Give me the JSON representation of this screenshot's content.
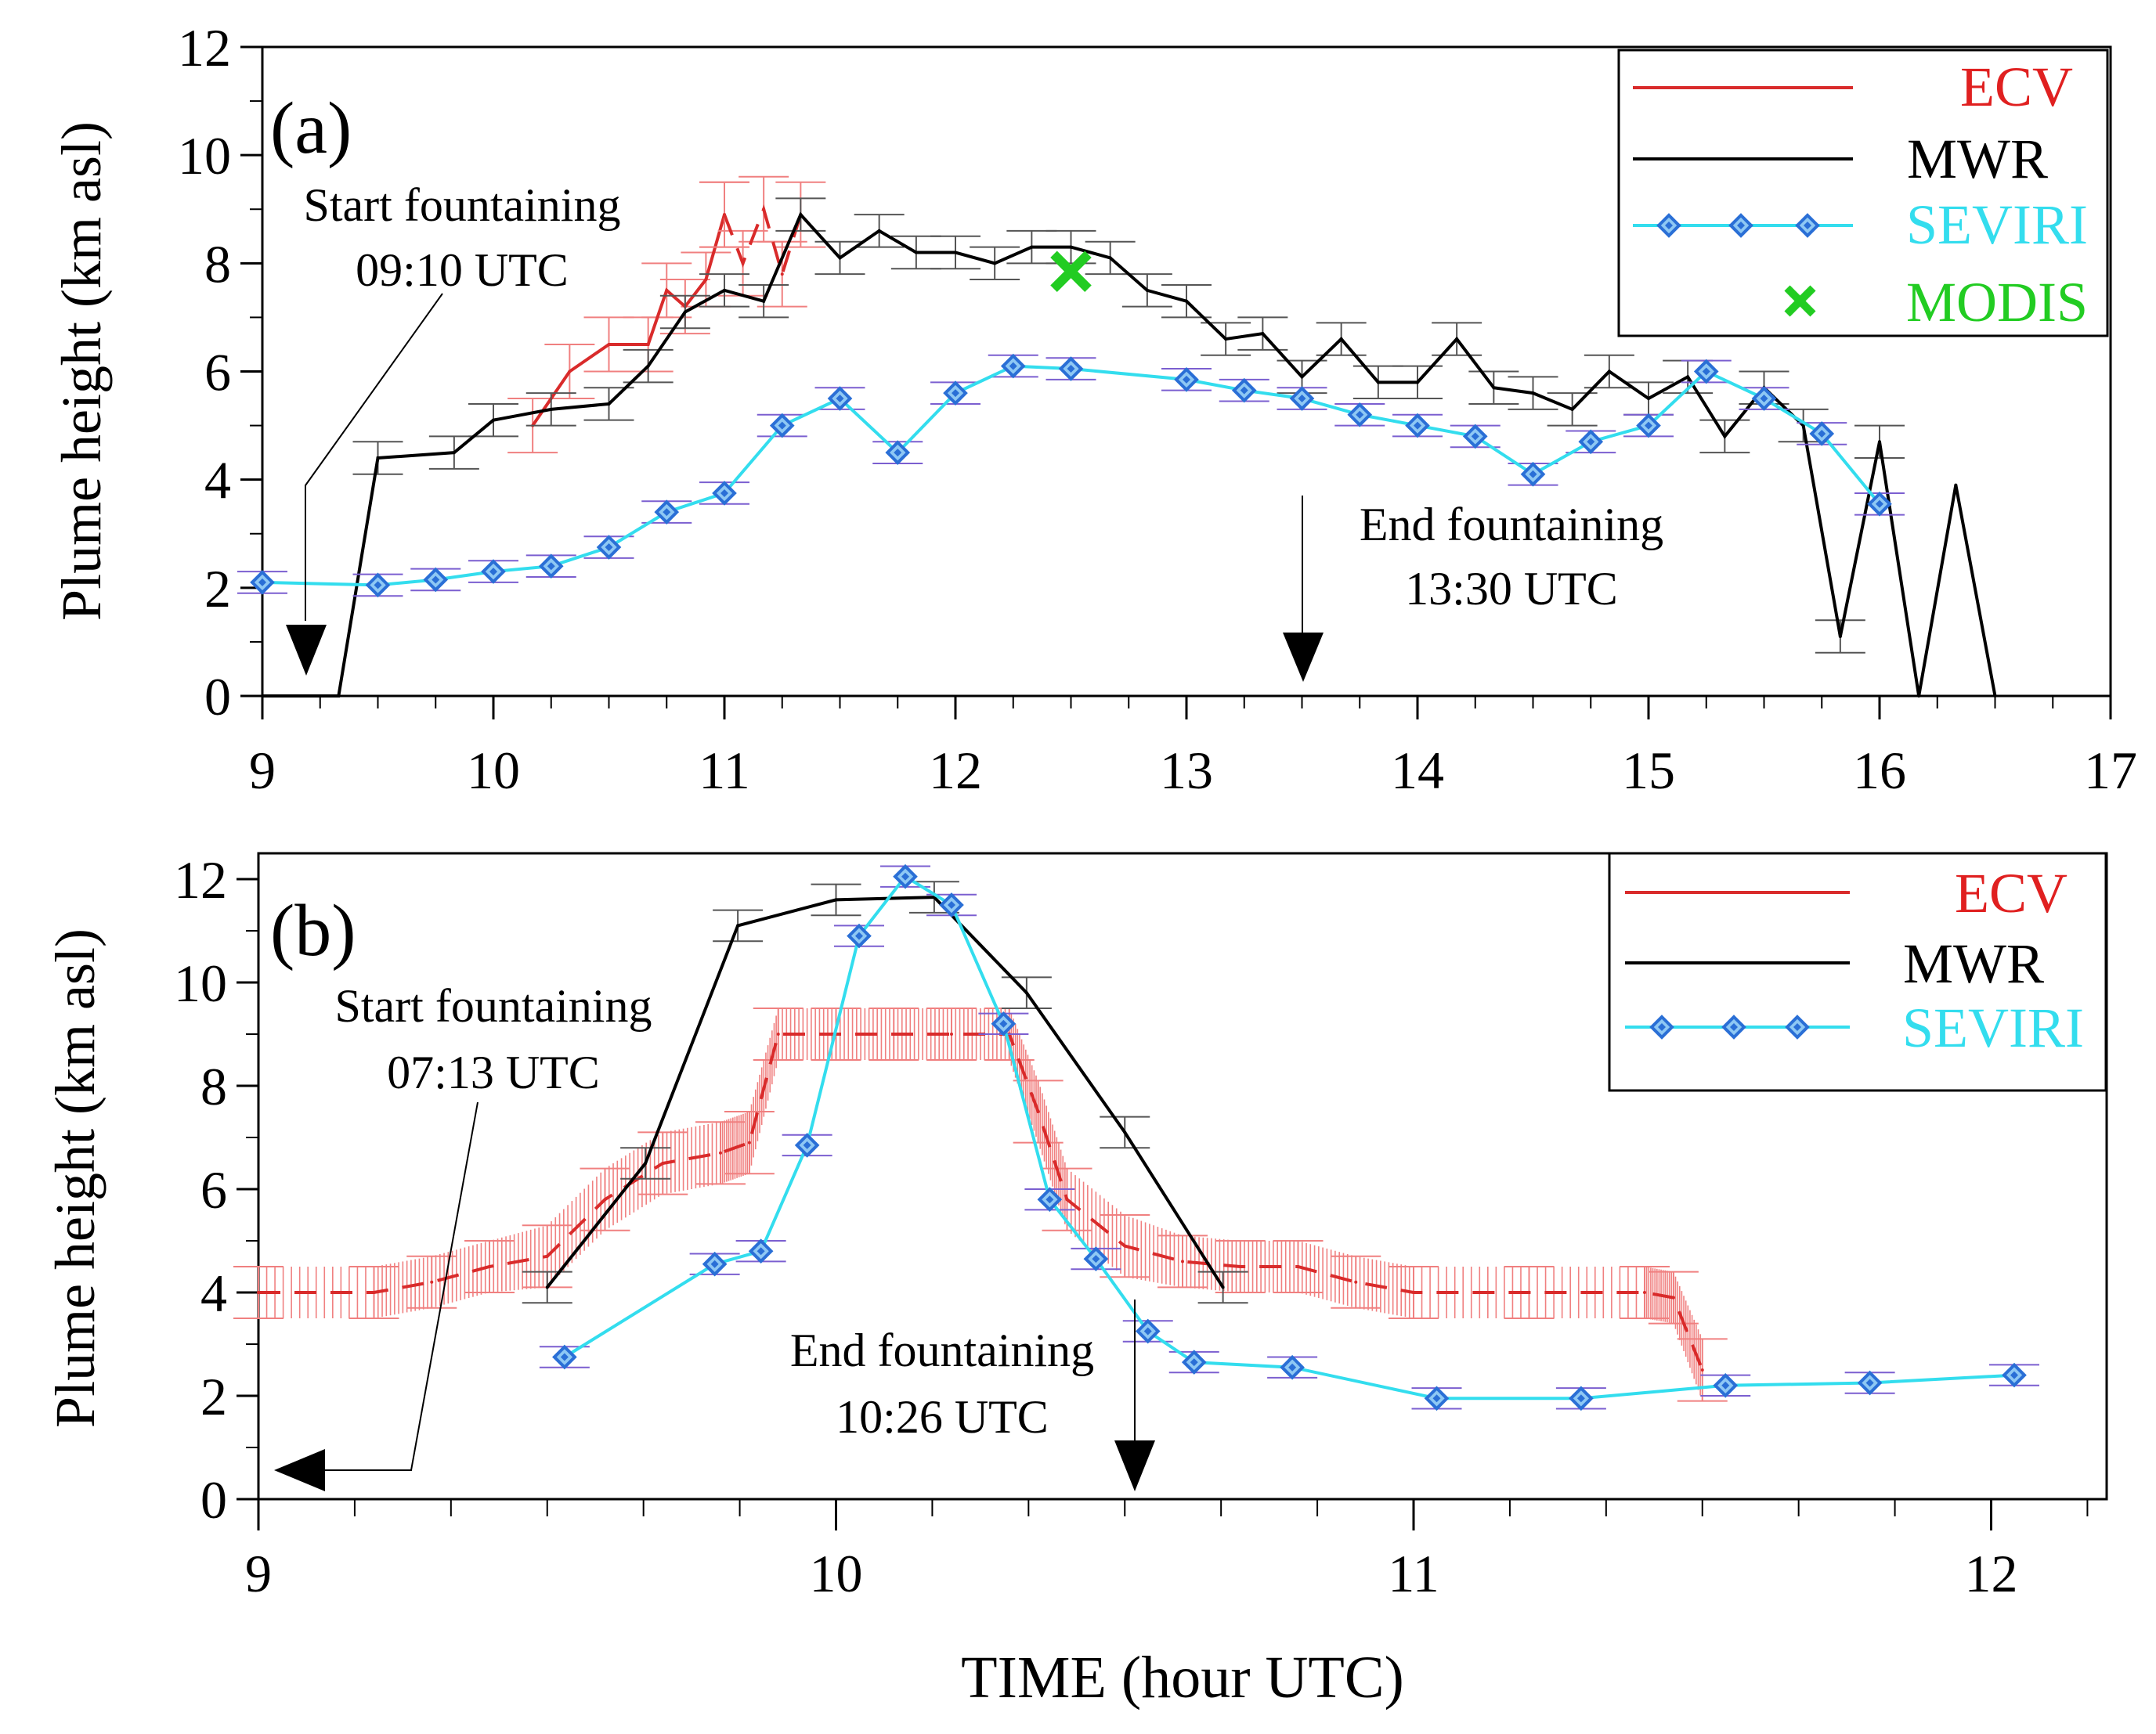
{
  "figure": {
    "x_axis_label": "TIME (hour UTC)"
  },
  "colors": {
    "ecv": "#d92b2b",
    "ecv_error": "#f08080",
    "mwr": "#000000",
    "seviri_line": "#33ddee",
    "seviri_marker": "#2a6fd6",
    "seviri_error": "#7b5fd0",
    "modis": "#22cc22",
    "mwr_error": "#555555"
  },
  "chart_data": [
    {
      "type": "line",
      "panel_label": "(a)",
      "ylabel": "Plume height (km asl)",
      "xlim": [
        9,
        17
      ],
      "ylim": [
        0,
        12
      ],
      "x_ticks": [
        "9",
        "10",
        "11",
        "12",
        "13",
        "14",
        "15",
        "16",
        "17"
      ],
      "y_ticks": [
        "0",
        "2",
        "4",
        "6",
        "8",
        "10",
        "12"
      ],
      "legend": {
        "position": "top-right",
        "entries": [
          {
            "key": "ECV",
            "label": "ECV"
          },
          {
            "key": "MWR",
            "label": "MWR"
          },
          {
            "key": "SEVIRI",
            "label": "SEVIRI"
          },
          {
            "key": "MODIS",
            "label": "MODIS"
          }
        ]
      },
      "annotations": [
        {
          "key": "start",
          "line1": "Start fountaining",
          "line2": "09:10 UTC",
          "arrow_x": 9.17
        },
        {
          "key": "end",
          "line1": "End fountaining",
          "line2": "13:30 UTC",
          "arrow_x": 13.5
        }
      ],
      "series": [
        {
          "name": "ECV",
          "style": "solid-red-with-errorbars",
          "x": [
            10.17,
            10.33,
            10.5,
            10.67,
            10.75,
            10.83,
            10.92,
            11.0
          ],
          "y": [
            5.0,
            6.0,
            6.5,
            6.5,
            7.5,
            7.2,
            7.7,
            8.9
          ],
          "err": [
            0.5,
            0.5,
            0.5,
            0.5,
            0.5,
            0.5,
            0.5,
            0.6
          ]
        },
        {
          "name": "ECV (dashed)",
          "style": "dashed-red-with-errorbars",
          "x": [
            11.0,
            11.08,
            11.17,
            11.25,
            11.33
          ],
          "y": [
            8.9,
            8.0,
            9.0,
            7.8,
            8.9
          ],
          "err": [
            0.6,
            0.6,
            0.6,
            0.6,
            0.6
          ]
        },
        {
          "name": "MWR",
          "x": [
            9.0,
            9.33,
            9.5,
            9.83,
            10.0,
            10.25,
            10.5,
            10.67,
            10.83,
            11.0,
            11.17,
            11.33,
            11.5,
            11.67,
            11.83,
            12.0,
            12.17,
            12.33,
            12.5,
            12.67,
            12.83,
            13.0,
            13.17,
            13.33,
            13.5,
            13.67,
            13.83,
            14.0,
            14.17,
            14.33,
            14.5,
            14.67,
            14.83,
            15.0,
            15.17,
            15.33,
            15.5,
            15.67,
            15.83,
            16.0,
            16.17,
            16.33,
            16.5
          ],
          "y": [
            0.0,
            0.0,
            4.4,
            4.5,
            5.1,
            5.3,
            5.4,
            6.1,
            7.1,
            7.5,
            7.3,
            8.9,
            8.1,
            8.6,
            8.2,
            8.2,
            8.0,
            8.3,
            8.3,
            8.1,
            7.5,
            7.3,
            6.6,
            6.7,
            5.9,
            6.6,
            5.8,
            5.8,
            6.6,
            5.7,
            5.6,
            5.3,
            6.0,
            5.5,
            5.9,
            4.8,
            5.7,
            5.0,
            1.1,
            4.7,
            0.0,
            3.9,
            0.0
          ],
          "err": [
            0.0,
            0.0,
            0.3,
            0.3,
            0.3,
            0.3,
            0.3,
            0.3,
            0.3,
            0.3,
            0.3,
            0.3,
            0.3,
            0.3,
            0.3,
            0.3,
            0.3,
            0.3,
            0.3,
            0.3,
            0.3,
            0.3,
            0.3,
            0.3,
            0.3,
            0.3,
            0.3,
            0.3,
            0.3,
            0.3,
            0.3,
            0.3,
            0.3,
            0.3,
            0.3,
            0.3,
            0.3,
            0.3,
            0.3,
            0.3,
            0.0,
            0.0,
            0.0
          ]
        },
        {
          "name": "SEVIRI",
          "x": [
            9.0,
            9.5,
            9.75,
            10.0,
            10.25,
            10.5,
            10.75,
            11.0,
            11.25,
            11.5,
            11.75,
            12.0,
            12.25,
            12.5,
            13.0,
            13.25,
            13.5,
            13.75,
            14.0,
            14.25,
            14.5,
            14.75,
            15.0,
            15.25,
            15.5,
            15.75,
            16.0
          ],
          "y": [
            2.1,
            2.05,
            2.15,
            2.3,
            2.4,
            2.75,
            3.4,
            3.75,
            5.0,
            5.5,
            4.5,
            5.6,
            6.1,
            6.05,
            5.85,
            5.65,
            5.5,
            5.2,
            5.0,
            4.8,
            4.1,
            4.7,
            5.0,
            6.0,
            5.5,
            4.85,
            3.55
          ],
          "err": [
            0.2,
            0.2,
            0.2,
            0.2,
            0.2,
            0.2,
            0.2,
            0.2,
            0.2,
            0.2,
            0.2,
            0.2,
            0.2,
            0.2,
            0.2,
            0.2,
            0.2,
            0.2,
            0.2,
            0.2,
            0.2,
            0.2,
            0.2,
            0.2,
            0.2,
            0.2,
            0.2
          ]
        },
        {
          "name": "MODIS",
          "style": "x-marker",
          "x": [
            12.5
          ],
          "y": [
            7.85
          ]
        }
      ]
    },
    {
      "type": "line",
      "panel_label": "(b)",
      "ylabel": "Plume height (km asl)",
      "xlabel": "TIME (hour UTC)",
      "xlim": [
        9,
        12.2
      ],
      "ylim": [
        0,
        12.5
      ],
      "x_ticks": [
        "9",
        "10",
        "11",
        "12"
      ],
      "y_ticks": [
        "0",
        "2",
        "4",
        "6",
        "8",
        "10",
        "12"
      ],
      "legend": {
        "position": "top-right",
        "entries": [
          {
            "key": "ECV",
            "label": "ECV"
          },
          {
            "key": "MWR",
            "label": "MWR"
          },
          {
            "key": "SEVIRI",
            "label": "SEVIRI"
          }
        ]
      },
      "annotations": [
        {
          "key": "start",
          "line1": "Start fountaining",
          "line2": "07:13 UTC",
          "arrow_x": 9.0
        },
        {
          "key": "end",
          "line1": "End fountaining",
          "line2": "10:26 UTC",
          "arrow_x": 10.52
        }
      ],
      "series": [
        {
          "name": "ECV",
          "style": "dashed-red-dense-errorbars",
          "x": [
            9.0,
            9.2,
            9.3,
            9.4,
            9.5,
            9.6,
            9.7,
            9.8,
            9.85,
            9.9,
            10.0,
            10.1,
            10.2,
            10.3,
            10.35,
            10.4,
            10.5,
            10.6,
            10.7,
            10.8,
            10.9,
            11.0,
            11.2,
            11.4,
            11.45,
            11.5
          ],
          "y": [
            4.0,
            4.0,
            4.2,
            4.5,
            4.7,
            5.8,
            6.5,
            6.7,
            6.9,
            9.0,
            9.0,
            9.0,
            9.0,
            9.0,
            7.5,
            5.8,
            4.9,
            4.6,
            4.5,
            4.5,
            4.2,
            4.0,
            4.0,
            4.0,
            3.9,
            2.5
          ],
          "err": [
            0.5,
            0.5,
            0.5,
            0.5,
            0.6,
            0.6,
            0.6,
            0.6,
            0.6,
            0.5,
            0.5,
            0.5,
            0.5,
            0.5,
            0.6,
            0.6,
            0.6,
            0.5,
            0.5,
            0.5,
            0.5,
            0.5,
            0.5,
            0.5,
            0.5,
            0.6
          ]
        },
        {
          "name": "MWR",
          "x": [
            9.5,
            9.67,
            9.83,
            10.0,
            10.17,
            10.33,
            10.5,
            10.67
          ],
          "y": [
            4.1,
            6.5,
            11.1,
            11.6,
            11.65,
            9.8,
            7.1,
            4.1
          ],
          "err": [
            0.3,
            0.3,
            0.3,
            0.3,
            0.3,
            0.3,
            0.3,
            0.3
          ]
        },
        {
          "name": "SEVIRI",
          "x": [
            9.53,
            9.79,
            9.87,
            9.95,
            10.04,
            10.12,
            10.2,
            10.29,
            10.37,
            10.45,
            10.54,
            10.62,
            10.79,
            11.04,
            11.29,
            11.54,
            11.79,
            12.04
          ],
          "y": [
            2.75,
            4.55,
            4.8,
            6.85,
            10.9,
            12.05,
            11.5,
            9.2,
            5.8,
            4.65,
            3.25,
            2.65,
            2.55,
            1.95,
            1.95,
            2.2,
            2.25,
            2.4
          ],
          "err": [
            0.2,
            0.2,
            0.2,
            0.2,
            0.2,
            0.2,
            0.2,
            0.2,
            0.2,
            0.2,
            0.2,
            0.2,
            0.2,
            0.2,
            0.2,
            0.2,
            0.2,
            0.2
          ]
        }
      ]
    }
  ]
}
